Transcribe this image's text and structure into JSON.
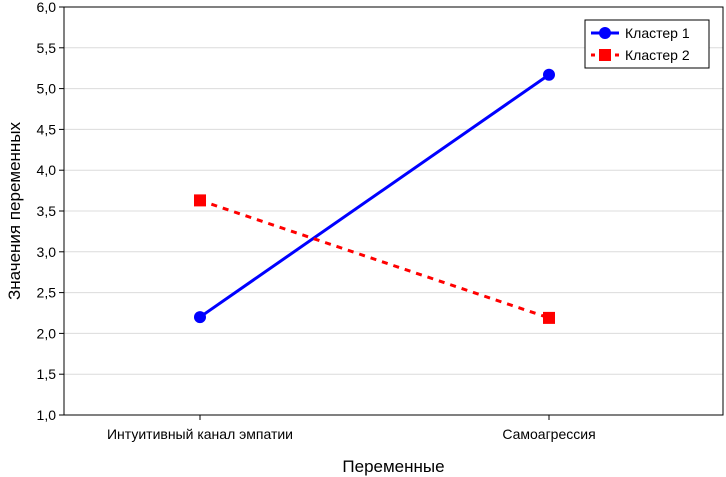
{
  "chart_data": {
    "type": "line",
    "categories": [
      "Интуитивный канал эмпатии",
      "Самоагрессия"
    ],
    "series": [
      {
        "name": "Кластер 1",
        "values": [
          2.2,
          5.17
        ],
        "color": "#0000ff",
        "style": "solid",
        "marker": "circle"
      },
      {
        "name": "Кластер 2",
        "values": [
          3.63,
          2.19
        ],
        "color": "#ff0000",
        "style": "dashed",
        "marker": "square"
      }
    ],
    "xlabel": "Переменные",
    "ylabel": "Значения переменных",
    "ylim": [
      1.0,
      6.0
    ],
    "yticks": [
      "1,0",
      "1,5",
      "2,0",
      "2,5",
      "3,0",
      "3,5",
      "4,0",
      "4,5",
      "5,0",
      "5,5",
      "6,0"
    ],
    "grid": true,
    "legend_position": "top-right"
  }
}
